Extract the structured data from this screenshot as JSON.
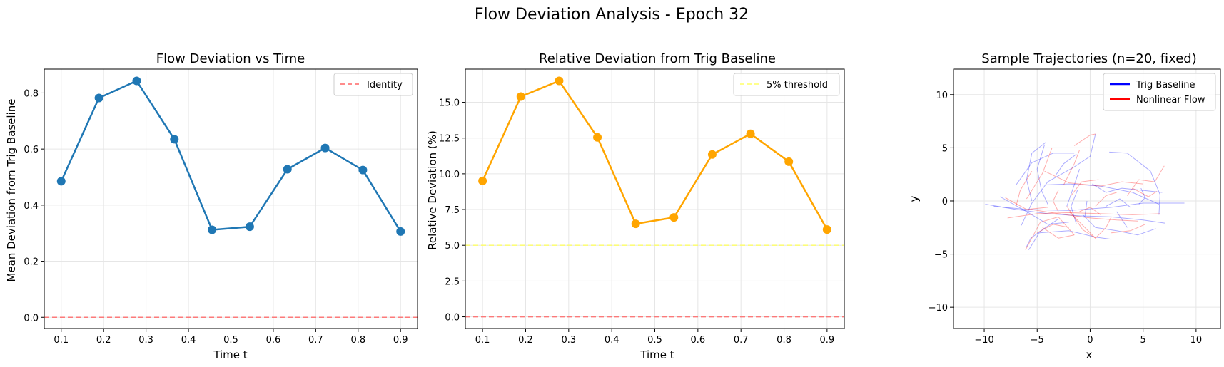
{
  "figure": {
    "suptitle": "Flow Deviation Analysis - Epoch 32"
  },
  "chart_data": [
    {
      "type": "line",
      "title": "Flow Deviation vs Time",
      "xlabel": "Time t",
      "ylabel": "Mean Deviation from Trig Baseline",
      "x": [
        0.1,
        0.1889,
        0.2778,
        0.3667,
        0.4556,
        0.5444,
        0.6333,
        0.7222,
        0.8111,
        0.9
      ],
      "series": [
        {
          "name": "",
          "color": "#1f77b4",
          "marker": "circle",
          "values": [
            0.485,
            0.782,
            0.843,
            0.635,
            0.312,
            0.323,
            0.528,
            0.604,
            0.525,
            0.306
          ]
        }
      ],
      "reference_lines": [
        {
          "name": "Identity",
          "y": 0.0,
          "color": "#ff6666",
          "style": "dashed"
        }
      ],
      "xlim": [
        0.06,
        0.94
      ],
      "ylim": [
        -0.04,
        0.885
      ],
      "xticks": [
        0.1,
        0.2,
        0.3,
        0.4,
        0.5,
        0.6,
        0.7,
        0.8,
        0.9
      ],
      "xtick_labels": [
        "0.1",
        "0.2",
        "0.3",
        "0.4",
        "0.5",
        "0.6",
        "0.7",
        "0.8",
        "0.9"
      ],
      "yticks": [
        0.0,
        0.2,
        0.4,
        0.6,
        0.8
      ],
      "ytick_labels": [
        "0.0",
        "0.2",
        "0.4",
        "0.6",
        "0.8"
      ],
      "grid": true,
      "legend": {
        "position": "upper right",
        "entries": [
          {
            "label": "Identity",
            "color": "#ff6666",
            "style": "dashed"
          }
        ]
      }
    },
    {
      "type": "line",
      "title": "Relative Deviation from Trig Baseline",
      "xlabel": "Time t",
      "ylabel": "Relative Deviation (%)",
      "x": [
        0.1,
        0.1889,
        0.2778,
        0.3667,
        0.4556,
        0.5444,
        0.6333,
        0.7222,
        0.8111,
        0.9
      ],
      "series": [
        {
          "name": "",
          "color": "#ffa500",
          "marker": "circle",
          "values": [
            9.5,
            15.4,
            16.5,
            12.55,
            6.5,
            6.95,
            11.35,
            12.8,
            10.85,
            6.1
          ]
        }
      ],
      "reference_lines": [
        {
          "name": "5% threshold",
          "y": 5.0,
          "color": "#ffff66",
          "style": "dashed"
        },
        {
          "name": "",
          "y": 0.0,
          "color": "#ff6666",
          "style": "dashed"
        }
      ],
      "xlim": [
        0.06,
        0.94
      ],
      "ylim": [
        -0.82,
        17.32
      ],
      "xticks": [
        0.1,
        0.2,
        0.3,
        0.4,
        0.5,
        0.6,
        0.7,
        0.8,
        0.9
      ],
      "xtick_labels": [
        "0.1",
        "0.2",
        "0.3",
        "0.4",
        "0.5",
        "0.6",
        "0.7",
        "0.8",
        "0.9"
      ],
      "yticks": [
        0.0,
        2.5,
        5.0,
        7.5,
        10.0,
        12.5,
        15.0
      ],
      "ytick_labels": [
        "0.0",
        "2.5",
        "5.0",
        "7.5",
        "10.0",
        "12.5",
        "15.0"
      ],
      "grid": true,
      "legend": {
        "position": "upper right",
        "entries": [
          {
            "label": "5% threshold",
            "color": "#ffff66",
            "style": "dashed"
          }
        ]
      }
    },
    {
      "type": "line",
      "title": "Sample Trajectories (n=20, fixed)",
      "xlabel": "x",
      "ylabel": "y",
      "xlim": [
        -12.9,
        12.3
      ],
      "ylim": [
        -12.0,
        12.4
      ],
      "xticks": [
        -10,
        -5,
        0,
        5,
        10
      ],
      "xtick_labels": [
        "−10",
        "−5",
        "0",
        "5",
        "10"
      ],
      "yticks": [
        -10,
        -5,
        0,
        5,
        10
      ],
      "ytick_labels": [
        "−10",
        "−5",
        "0",
        "5",
        "10"
      ],
      "grid": true,
      "legend": {
        "position": "upper right",
        "entries": [
          {
            "label": "Trig Baseline",
            "color": "#0000ff",
            "style": "solid"
          },
          {
            "label": "Nonlinear Flow",
            "color": "#ff0000",
            "style": "solid"
          }
        ]
      },
      "series": [
        {
          "name": "Trig Baseline",
          "color": "#0000ff",
          "trajectories": [
            [
              [
                -9.9,
                -0.3
              ],
              [
                -7,
                -0.8
              ],
              [
                -4,
                -1.2
              ],
              [
                -1,
                -1.4
              ],
              [
                2,
                -1.5
              ],
              [
                5,
                -1.8
              ],
              [
                7.1,
                -2.1
              ]
            ],
            [
              [
                -9.1,
                -0.5
              ],
              [
                -6,
                -0.8
              ],
              [
                -2,
                -0.9
              ],
              [
                2,
                -0.6
              ],
              [
                5,
                -0.2
              ],
              [
                8.9,
                -0.2
              ]
            ],
            [
              [
                -6.5,
                -2.3
              ],
              [
                -5.5,
                -0.2
              ],
              [
                -4,
                1.8
              ],
              [
                -1.5,
                3.2
              ],
              [
                0,
                4.2
              ],
              [
                0.5,
                6.3
              ]
            ],
            [
              [
                -7,
                1.5
              ],
              [
                -5.5,
                3.6
              ],
              [
                -3.5,
                4.5
              ],
              [
                -1.5,
                4.5
              ]
            ],
            [
              [
                -5.8,
                -4.6
              ],
              [
                -4.8,
                -3
              ],
              [
                -2,
                -2.8
              ],
              [
                0.5,
                -3.4
              ],
              [
                2,
                -3.6
              ]
            ],
            [
              [
                -4.5,
                1.5
              ],
              [
                -2,
                1.6
              ],
              [
                1,
                1.4
              ],
              [
                4,
                0.8
              ],
              [
                6.5,
                -0.3
              ]
            ],
            [
              [
                -4,
                -0.3
              ],
              [
                -4.6,
                1
              ],
              [
                -5,
                3
              ],
              [
                -4.3,
                5.3
              ]
            ],
            [
              [
                -5.5,
                0
              ],
              [
                -6,
                2
              ],
              [
                -5.5,
                4.5
              ],
              [
                -4.2,
                5.5
              ]
            ],
            [
              [
                -2.2,
                -0.5
              ],
              [
                -1.5,
                1.5
              ],
              [
                -1,
                3
              ]
            ],
            [
              [
                1.8,
                4.6
              ],
              [
                3.5,
                4.5
              ],
              [
                5.7,
                2.8
              ],
              [
                6.6,
                0.6
              ],
              [
                6.5,
                -1.3
              ]
            ],
            [
              [
                -0.7,
                -1.3
              ],
              [
                0.5,
                -2.5
              ],
              [
                2.5,
                -2.8
              ],
              [
                4.5,
                -3.2
              ],
              [
                6.2,
                -2.6
              ]
            ],
            [
              [
                0.2,
                1.6
              ],
              [
                1.5,
                0.8
              ],
              [
                3,
                1.2
              ],
              [
                5,
                1
              ],
              [
                6.8,
                0.8
              ]
            ],
            [
              [
                2.5,
                -1
              ],
              [
                3.5,
                -2.5
              ]
            ],
            [
              [
                -8.5,
                0.4
              ],
              [
                -6,
                -1
              ],
              [
                -4,
                -2.2
              ],
              [
                -2,
                -2
              ]
            ],
            [
              [
                -1.3,
                -2.2
              ],
              [
                -1.8,
                -0.5
              ],
              [
                -1.2,
                1
              ]
            ],
            [
              [
                4.8,
                1.2
              ],
              [
                5.2,
                0.3
              ],
              [
                4.6,
                -0.3
              ]
            ],
            [
              [
                -3,
                -1.7
              ],
              [
                -4.2,
                -2.5
              ],
              [
                -5.6,
                -3.5
              ],
              [
                -6,
                -4.3
              ]
            ],
            [
              [
                -0.5,
                -1.5
              ],
              [
                -0.3,
                0
              ]
            ],
            [
              [
                1.5,
                -0.5
              ],
              [
                2.8,
                0.2
              ],
              [
                3.8,
                -0.6
              ]
            ],
            [
              [
                -3.2,
                2.5
              ],
              [
                -2.5,
                3.5
              ],
              [
                -1.3,
                4.4
              ]
            ]
          ]
        },
        {
          "name": "Nonlinear Flow",
          "color": "#ff0000",
          "trajectories": [
            [
              [
                -7.8,
                -1.6
              ],
              [
                -5,
                -1.2
              ],
              [
                -2,
                -1.1
              ],
              [
                1,
                -1.2
              ],
              [
                4,
                -1.3
              ],
              [
                6.6,
                -1.2
              ]
            ],
            [
              [
                -6,
                0.2
              ],
              [
                -4.5,
                2.6
              ],
              [
                -3.6,
                5
              ]
            ],
            [
              [
                -6.1,
                -4.6
              ],
              [
                -4.7,
                -2
              ],
              [
                -3,
                -1.5
              ],
              [
                -1.5,
                -3.2
              ]
            ],
            [
              [
                -4.3,
                2.8
              ],
              [
                -2,
                1.7
              ],
              [
                1,
                1.4
              ],
              [
                3,
                1.8
              ],
              [
                5,
                1.6
              ]
            ],
            [
              [
                -1.5,
                5.2
              ],
              [
                0,
                6.2
              ],
              [
                0.5,
                6.3
              ]
            ],
            [
              [
                -5.6,
                -0.8
              ],
              [
                -3,
                -1.2
              ],
              [
                0,
                -1.6
              ],
              [
                2.5,
                -1.8
              ],
              [
                4.5,
                -1.9
              ]
            ],
            [
              [
                -8,
                0.3
              ],
              [
                -6,
                -0.8
              ],
              [
                -4,
                -0.6
              ]
            ],
            [
              [
                -2.2,
                -0.5
              ],
              [
                -0.7,
                -2.7
              ],
              [
                0.5,
                -3.5
              ],
              [
                1.5,
                -2.5
              ],
              [
                2,
                -1.5
              ]
            ],
            [
              [
                -2.5,
                1.5
              ],
              [
                -1.5,
                3.5
              ],
              [
                -1,
                4.8
              ]
            ],
            [
              [
                0.5,
                -0.5
              ],
              [
                1.5,
                0.5
              ],
              [
                2.5,
                0.8
              ]
            ],
            [
              [
                -5.5,
                2.8
              ],
              [
                -6.6,
                1
              ],
              [
                -7,
                -0.5
              ]
            ],
            [
              [
                -3,
                -1
              ],
              [
                -3.5,
                0
              ],
              [
                -3,
                1
              ]
            ],
            [
              [
                3.5,
                0.5
              ],
              [
                4.6,
                2
              ],
              [
                6.1,
                1.8
              ],
              [
                7,
                3.3
              ]
            ],
            [
              [
                -1.8,
                0.5
              ],
              [
                -0.8,
                1.8
              ],
              [
                0.8,
                2
              ]
            ],
            [
              [
                0.5,
                -3.5
              ],
              [
                -1,
                -2
              ],
              [
                -2,
                -1
              ]
            ],
            [
              [
                -5,
                -3
              ],
              [
                -3.5,
                -2.2
              ],
              [
                -2,
                -2.5
              ]
            ],
            [
              [
                2,
                -3
              ],
              [
                3.8,
                -2.8
              ],
              [
                5.2,
                -2.2
              ]
            ],
            [
              [
                -1,
                -1
              ],
              [
                0,
                -0.6
              ],
              [
                1,
                -1.3
              ]
            ],
            [
              [
                4,
                1.2
              ],
              [
                5.5,
                0.4
              ],
              [
                6.3,
                0.9
              ]
            ],
            [
              [
                -4.5,
                -2.5
              ],
              [
                -3,
                -3.5
              ],
              [
                -1.5,
                -3.2
              ]
            ]
          ]
        }
      ]
    }
  ]
}
